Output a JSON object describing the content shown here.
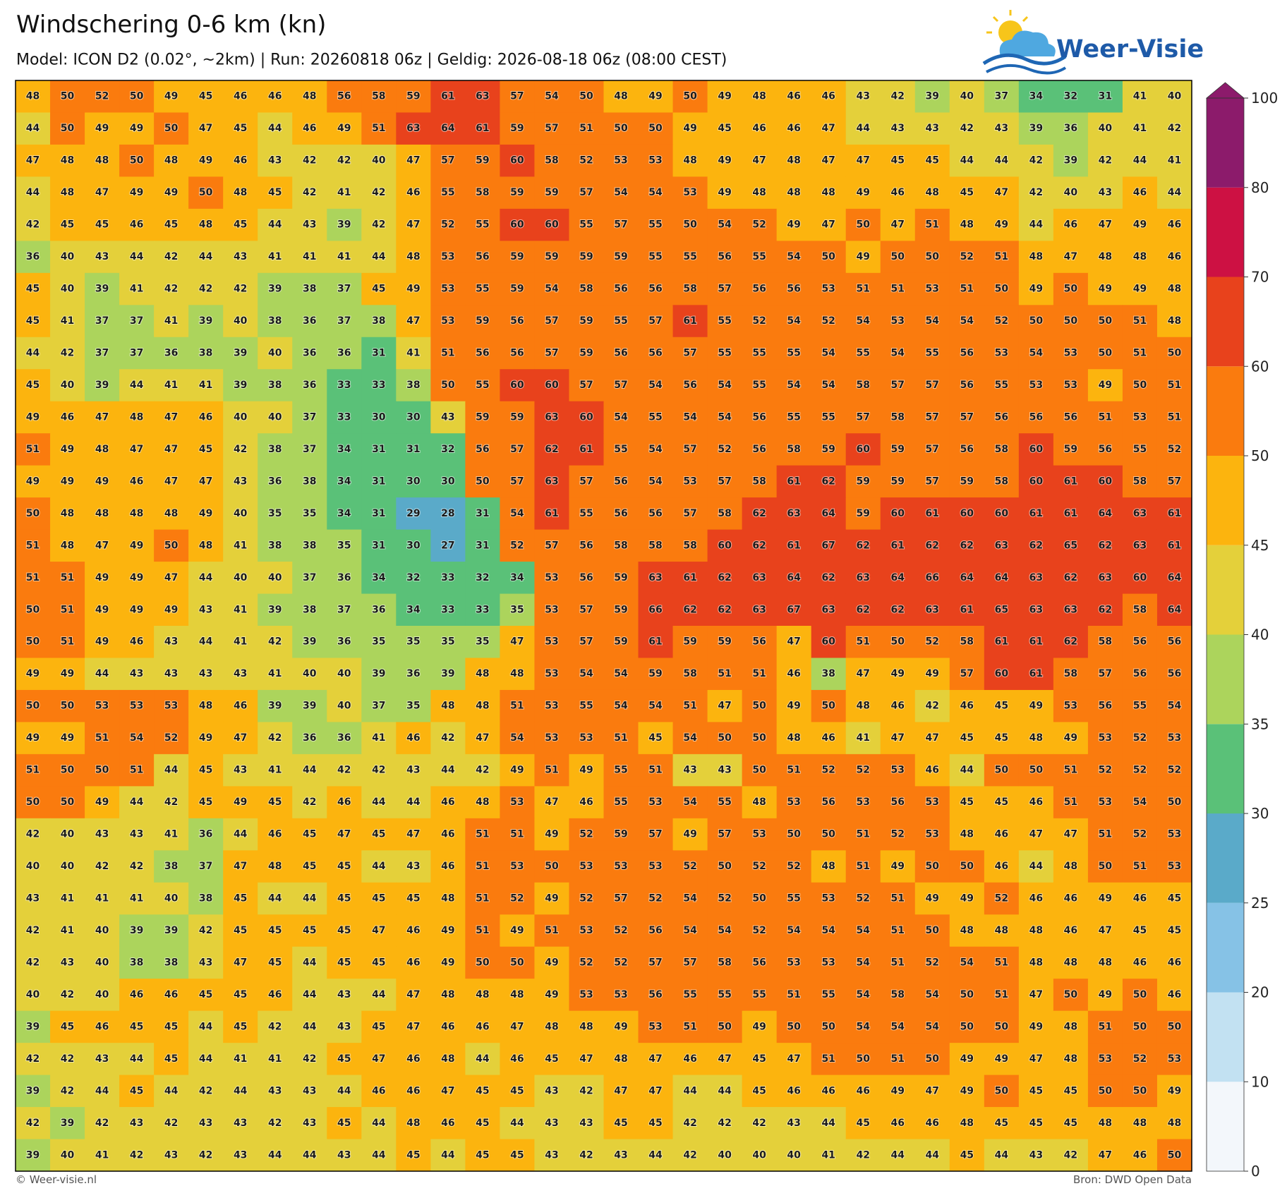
{
  "header": {
    "title": "Windschering 0-6 km (kn)",
    "subtitle": "Model: ICON D2 (0.02°, ~2km)  |  Run: 20260818 06z  |  Geldig: 2026-08-18 06z (08:00 CEST)",
    "logo": "Weer-Visie"
  },
  "map": {
    "values": [
      [
        48,
        50,
        52,
        50,
        49,
        45,
        46,
        46,
        48,
        56,
        58,
        59,
        61,
        63,
        57,
        54,
        50,
        48,
        49,
        50,
        49,
        48,
        46,
        46,
        43,
        42,
        39,
        40,
        37,
        34,
        32,
        31,
        41,
        40
      ],
      [
        44,
        50,
        49,
        49,
        50,
        47,
        45,
        44,
        46,
        49,
        51,
        63,
        64,
        61,
        59,
        57,
        51,
        50,
        50,
        49,
        45,
        46,
        46,
        47,
        44,
        43,
        43,
        42,
        43,
        39,
        36,
        40,
        41,
        42
      ],
      [
        47,
        48,
        48,
        50,
        48,
        49,
        46,
        43,
        42,
        42,
        40,
        47,
        57,
        59,
        60,
        58,
        52,
        53,
        53,
        48,
        49,
        47,
        48,
        47,
        47,
        45,
        45,
        44,
        44,
        42,
        39,
        42,
        44,
        41
      ],
      [
        44,
        48,
        47,
        49,
        49,
        50,
        48,
        45,
        42,
        41,
        42,
        46,
        55,
        58,
        59,
        59,
        57,
        54,
        54,
        53,
        49,
        48,
        48,
        48,
        49,
        46,
        48,
        45,
        47,
        42,
        40,
        43,
        46,
        44
      ],
      [
        42,
        45,
        45,
        46,
        45,
        48,
        45,
        44,
        43,
        39,
        42,
        47,
        52,
        55,
        60,
        60,
        55,
        57,
        55,
        50,
        54,
        52,
        49,
        47,
        50,
        47,
        51,
        48,
        49,
        44,
        46,
        47,
        49,
        46
      ],
      [
        36,
        40,
        43,
        44,
        42,
        44,
        43,
        41,
        41,
        41,
        44,
        48,
        53,
        56,
        59,
        59,
        59,
        59,
        55,
        55,
        56,
        55,
        54,
        50,
        49,
        50,
        50,
        52,
        51,
        48,
        47,
        48,
        48,
        46
      ],
      [
        45,
        40,
        39,
        41,
        42,
        42,
        42,
        39,
        38,
        37,
        45,
        49,
        53,
        55,
        59,
        54,
        58,
        56,
        56,
        58,
        57,
        56,
        56,
        53,
        51,
        51,
        53,
        51,
        50,
        49,
        50,
        49,
        49,
        48
      ],
      [
        45,
        41,
        37,
        37,
        41,
        39,
        40,
        38,
        36,
        37,
        38,
        47,
        53,
        59,
        56,
        57,
        59,
        55,
        57,
        61,
        55,
        52,
        54,
        52,
        54,
        53,
        54,
        54,
        52,
        50,
        50,
        50,
        51,
        48
      ],
      [
        44,
        42,
        37,
        37,
        36,
        38,
        39,
        40,
        36,
        36,
        31,
        41,
        51,
        56,
        56,
        57,
        59,
        56,
        56,
        57,
        55,
        55,
        55,
        54,
        55,
        54,
        55,
        56,
        53,
        54,
        53,
        50,
        51,
        50
      ],
      [
        45,
        40,
        39,
        44,
        41,
        41,
        39,
        38,
        36,
        33,
        33,
        38,
        50,
        55,
        60,
        60,
        57,
        57,
        54,
        56,
        54,
        55,
        54,
        54,
        58,
        57,
        57,
        56,
        55,
        53,
        53,
        49,
        50,
        51
      ],
      [
        49,
        46,
        47,
        48,
        47,
        46,
        40,
        40,
        37,
        33,
        30,
        30,
        43,
        59,
        59,
        63,
        60,
        54,
        55,
        54,
        54,
        56,
        55,
        55,
        57,
        58,
        57,
        57,
        56,
        56,
        56,
        51,
        53,
        51
      ],
      [
        51,
        49,
        48,
        47,
        47,
        45,
        42,
        38,
        37,
        34,
        31,
        31,
        32,
        56,
        57,
        62,
        61,
        55,
        54,
        57,
        52,
        56,
        58,
        59,
        60,
        59,
        57,
        56,
        58,
        60,
        59,
        56,
        55,
        52
      ],
      [
        49,
        49,
        49,
        46,
        47,
        47,
        43,
        36,
        38,
        34,
        31,
        30,
        30,
        50,
        57,
        63,
        57,
        56,
        54,
        53,
        57,
        58,
        61,
        62,
        59,
        59,
        57,
        59,
        58,
        60,
        61,
        60,
        58,
        57
      ],
      [
        50,
        48,
        48,
        48,
        48,
        49,
        40,
        35,
        35,
        34,
        31,
        29,
        28,
        31,
        54,
        61,
        55,
        56,
        56,
        57,
        58,
        62,
        63,
        64,
        59,
        60,
        61,
        60,
        60,
        61,
        61,
        64,
        63,
        61
      ],
      [
        51,
        48,
        47,
        49,
        50,
        48,
        41,
        38,
        38,
        35,
        31,
        30,
        27,
        31,
        52,
        57,
        56,
        58,
        58,
        58,
        60,
        62,
        61,
        67,
        62,
        61,
        62,
        62,
        63,
        62,
        65,
        62,
        63,
        61
      ],
      [
        51,
        51,
        49,
        49,
        47,
        44,
        40,
        40,
        37,
        36,
        34,
        32,
        33,
        32,
        34,
        53,
        56,
        59,
        63,
        61,
        62,
        63,
        64,
        62,
        63,
        64,
        66,
        64,
        64,
        63,
        62,
        63,
        60,
        64
      ],
      [
        50,
        51,
        49,
        49,
        49,
        43,
        41,
        39,
        38,
        37,
        36,
        34,
        33,
        33,
        35,
        53,
        57,
        59,
        66,
        62,
        62,
        63,
        67,
        63,
        62,
        62,
        63,
        61,
        65,
        63,
        63,
        62,
        58,
        64
      ],
      [
        50,
        51,
        49,
        46,
        43,
        44,
        41,
        42,
        39,
        36,
        35,
        35,
        35,
        35,
        47,
        53,
        57,
        59,
        61,
        59,
        59,
        56,
        47,
        60,
        51,
        50,
        52,
        58,
        61,
        61,
        62,
        58,
        56,
        56
      ],
      [
        49,
        49,
        44,
        43,
        43,
        43,
        43,
        41,
        40,
        40,
        39,
        36,
        39,
        48,
        48,
        53,
        54,
        54,
        59,
        58,
        51,
        51,
        46,
        38,
        47,
        49,
        49,
        57,
        60,
        61,
        58,
        57,
        56,
        56
      ],
      [
        50,
        50,
        53,
        53,
        53,
        48,
        46,
        39,
        39,
        40,
        37,
        35,
        48,
        48,
        51,
        53,
        55,
        54,
        54,
        51,
        47,
        50,
        49,
        50,
        48,
        46,
        42,
        46,
        45,
        49,
        53,
        56,
        55,
        54
      ],
      [
        49,
        49,
        51,
        54,
        52,
        49,
        47,
        42,
        36,
        36,
        41,
        46,
        42,
        47,
        54,
        53,
        53,
        51,
        45,
        54,
        50,
        50,
        48,
        46,
        41,
        47,
        47,
        45,
        45,
        48,
        49,
        53,
        52,
        53
      ],
      [
        51,
        50,
        50,
        51,
        44,
        45,
        43,
        41,
        44,
        42,
        42,
        43,
        44,
        42,
        49,
        51,
        49,
        55,
        51,
        43,
        43,
        50,
        51,
        52,
        52,
        53,
        46,
        44,
        50,
        50,
        51,
        52,
        52,
        52
      ],
      [
        50,
        50,
        49,
        44,
        42,
        45,
        49,
        45,
        42,
        46,
        44,
        44,
        46,
        48,
        53,
        47,
        46,
        55,
        53,
        54,
        55,
        48,
        53,
        56,
        53,
        56,
        53,
        45,
        45,
        46,
        51,
        53,
        54,
        50
      ],
      [
        42,
        40,
        43,
        43,
        41,
        36,
        44,
        46,
        45,
        47,
        45,
        47,
        46,
        51,
        51,
        49,
        52,
        59,
        57,
        49,
        57,
        53,
        50,
        50,
        51,
        52,
        53,
        48,
        46,
        47,
        47,
        51,
        52,
        53
      ],
      [
        40,
        40,
        42,
        42,
        38,
        37,
        47,
        48,
        45,
        45,
        44,
        43,
        46,
        51,
        53,
        50,
        53,
        53,
        53,
        52,
        50,
        52,
        52,
        48,
        51,
        49,
        50,
        50,
        46,
        44,
        48,
        50,
        51,
        53
      ],
      [
        43,
        41,
        41,
        41,
        40,
        38,
        45,
        44,
        44,
        45,
        45,
        45,
        48,
        51,
        52,
        49,
        52,
        57,
        52,
        54,
        52,
        50,
        55,
        53,
        52,
        51,
        49,
        49,
        52,
        46,
        46,
        49,
        46,
        45
      ],
      [
        42,
        41,
        40,
        39,
        39,
        42,
        45,
        45,
        45,
        45,
        47,
        46,
        49,
        51,
        49,
        51,
        53,
        52,
        56,
        54,
        54,
        52,
        54,
        54,
        54,
        51,
        50,
        48,
        48,
        48,
        46,
        47,
        45,
        45
      ],
      [
        42,
        43,
        40,
        38,
        38,
        43,
        47,
        45,
        44,
        45,
        45,
        46,
        49,
        50,
        50,
        49,
        52,
        52,
        57,
        57,
        58,
        56,
        53,
        53,
        54,
        51,
        52,
        54,
        51,
        48,
        48,
        48,
        46,
        46
      ],
      [
        40,
        42,
        40,
        46,
        46,
        45,
        45,
        46,
        44,
        43,
        44,
        47,
        48,
        48,
        48,
        49,
        53,
        53,
        56,
        55,
        55,
        55,
        51,
        55,
        54,
        58,
        54,
        50,
        51,
        47,
        50,
        49,
        50,
        46
      ],
      [
        39,
        45,
        46,
        45,
        45,
        44,
        45,
        42,
        44,
        43,
        45,
        47,
        46,
        46,
        47,
        48,
        48,
        49,
        53,
        51,
        50,
        49,
        50,
        50,
        54,
        54,
        54,
        50,
        50,
        49,
        48,
        51,
        50,
        50
      ],
      [
        42,
        42,
        43,
        44,
        45,
        44,
        41,
        41,
        42,
        45,
        47,
        46,
        48,
        44,
        46,
        45,
        47,
        48,
        47,
        46,
        47,
        45,
        47,
        51,
        50,
        51,
        50,
        49,
        49,
        47,
        48,
        53,
        52,
        53
      ],
      [
        39,
        42,
        44,
        45,
        44,
        42,
        44,
        43,
        43,
        44,
        46,
        46,
        47,
        45,
        45,
        43,
        42,
        47,
        47,
        44,
        44,
        45,
        46,
        46,
        46,
        49,
        47,
        49,
        50,
        45,
        45,
        50,
        50,
        49
      ],
      [
        42,
        39,
        42,
        43,
        42,
        43,
        43,
        42,
        43,
        45,
        44,
        48,
        46,
        45,
        44,
        43,
        43,
        45,
        45,
        42,
        42,
        42,
        43,
        44,
        45,
        46,
        46,
        48,
        45,
        45,
        45,
        48,
        48,
        48
      ],
      [
        39,
        40,
        41,
        42,
        43,
        42,
        43,
        44,
        44,
        43,
        44,
        45,
        44,
        45,
        45,
        43,
        42,
        43,
        44,
        42,
        40,
        40,
        40,
        41,
        42,
        44,
        44,
        45,
        44,
        43,
        42,
        47,
        46,
        50
      ]
    ]
  },
  "colorbar": {
    "ticks": [
      0,
      10,
      20,
      25,
      30,
      35,
      40,
      45,
      50,
      60,
      70,
      80,
      100
    ],
    "colors": [
      "#f3f7fb",
      "#c2e1f2",
      "#86c2e6",
      "#5aaac9",
      "#5ac178",
      "#acd45c",
      "#e4d03a",
      "#fcb40e",
      "#fa7b0e",
      "#e8421c",
      "#cd1143",
      "#8c1b6b"
    ],
    "extend_color": "#8c1b6b"
  },
  "footer": {
    "left": "© Weer-visie.nl",
    "right": "Bron: DWD Open Data"
  }
}
